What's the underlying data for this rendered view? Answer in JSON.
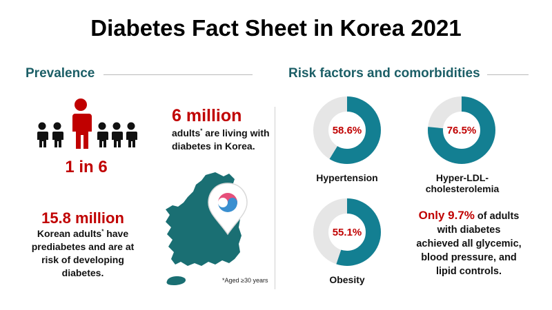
{
  "title": "Diabetes Fact Sheet in Korea 2021",
  "prevalence": {
    "heading": "Prevalence",
    "ratio": "1 in 6",
    "ratio_fraction": 0.1667,
    "adults_count": "6 million",
    "adults_text_1": "adults",
    "adults_text_2": " are living with",
    "adults_text_3": "diabetes in Korea.",
    "asterisk": "*",
    "prediabetes_count": "15.8 million",
    "prediabetes_line1_a": "Korean adults",
    "prediabetes_line1_b": " have",
    "prediabetes_line2": "prediabetes and are at",
    "prediabetes_line3": "risk of developing",
    "prediabetes_line4": "diabetes.",
    "footnote": "*Aged ≥30 years"
  },
  "risk": {
    "heading": "Risk factors and comorbidities",
    "items": [
      {
        "label": "Hypertension",
        "pct_text": "58.6%",
        "value": 58.6
      },
      {
        "label": "Hyper-LDL-cholesterolemia",
        "pct_text": "76.5%",
        "value": 76.5
      },
      {
        "label": "Obesity",
        "pct_text": "55.1%",
        "value": 55.1
      }
    ],
    "control_highlight": "Only 9.7%",
    "control_line1_rest": " of adults",
    "control_line2": "with diabetes",
    "control_line3": "achieved all glycemic,",
    "control_line4": "blood pressure, and",
    "control_line5": "lipid controls.",
    "control_value": 9.7
  },
  "colors": {
    "teal": "#137f92",
    "map_teal": "#1a6f73",
    "gray_track": "#e6e6e6",
    "red": "#c00000",
    "heading_teal": "#1b5e66"
  }
}
